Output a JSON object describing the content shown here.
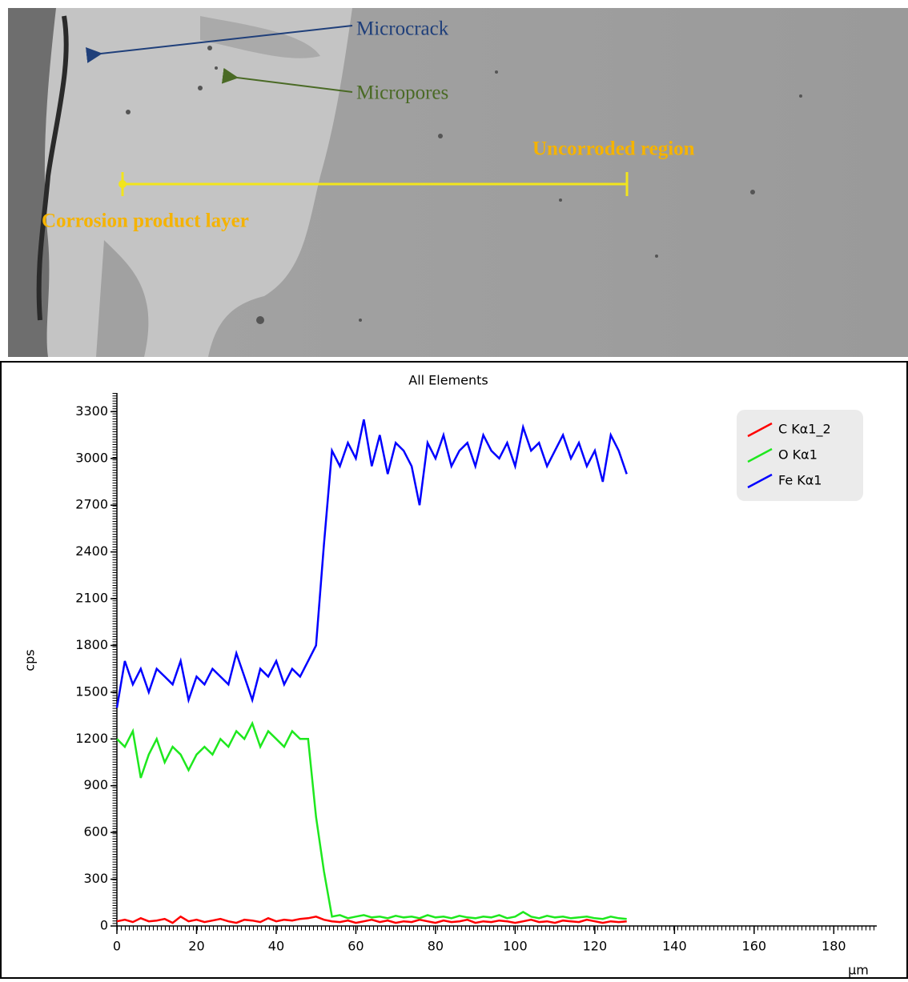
{
  "image": {
    "annotations": [
      "Microcrack",
      "Micropores",
      "Uncorroded region",
      "Corrosion product layer"
    ]
  },
  "chart_data": {
    "type": "line",
    "title": "All Elements",
    "y_label": "cps",
    "x_label": "µm",
    "x": [
      0,
      2,
      4,
      6,
      8,
      10,
      12,
      14,
      16,
      18,
      20,
      22,
      24,
      26,
      28,
      30,
      32,
      34,
      36,
      38,
      40,
      42,
      44,
      46,
      48,
      50,
      52,
      54,
      56,
      58,
      60,
      62,
      64,
      66,
      68,
      70,
      72,
      74,
      76,
      78,
      80,
      82,
      84,
      86,
      88,
      90,
      92,
      94,
      96,
      98,
      100,
      102,
      104,
      106,
      108,
      110,
      112,
      114,
      116,
      118,
      120,
      122,
      124,
      126,
      128
    ],
    "series": [
      {
        "name": "C Kα1_2",
        "color": "#ff0000",
        "values": [
          30,
          40,
          25,
          50,
          30,
          35,
          45,
          20,
          60,
          30,
          40,
          25,
          35,
          45,
          30,
          20,
          40,
          35,
          25,
          50,
          30,
          40,
          35,
          45,
          50,
          60,
          40,
          30,
          25,
          35,
          20,
          30,
          40,
          25,
          35,
          20,
          30,
          25,
          40,
          30,
          20,
          35,
          25,
          30,
          40,
          20,
          30,
          25,
          35,
          30,
          20,
          30,
          40,
          25,
          30,
          20,
          35,
          30,
          25,
          40,
          30,
          20,
          30,
          25,
          30
        ]
      },
      {
        "name": "O Kα1",
        "color": "#1ee81e",
        "values": [
          1200,
          1150,
          1250,
          950,
          1100,
          1200,
          1050,
          1150,
          1100,
          1000,
          1100,
          1150,
          1100,
          1200,
          1150,
          1250,
          1200,
          1300,
          1150,
          1250,
          1200,
          1150,
          1250,
          1200,
          1200,
          700,
          350,
          60,
          70,
          50,
          60,
          70,
          55,
          60,
          50,
          65,
          55,
          60,
          50,
          70,
          55,
          60,
          50,
          65,
          55,
          50,
          60,
          55,
          70,
          50,
          60,
          90,
          60,
          50,
          65,
          55,
          60,
          50,
          55,
          60,
          50,
          45,
          60,
          50,
          45
        ]
      },
      {
        "name": "Fe Kα1",
        "color": "#0000ff",
        "values": [
          1400,
          1700,
          1550,
          1650,
          1500,
          1650,
          1600,
          1550,
          1700,
          1450,
          1600,
          1550,
          1650,
          1600,
          1550,
          1750,
          1600,
          1450,
          1650,
          1600,
          1700,
          1550,
          1650,
          1600,
          1700,
          1800,
          2450,
          3050,
          2950,
          3100,
          3000,
          3250,
          2950,
          3150,
          2900,
          3100,
          3050,
          2950,
          2700,
          3100,
          3000,
          3150,
          2950,
          3050,
          3100,
          2950,
          3150,
          3050,
          3000,
          3100,
          2950,
          3200,
          3050,
          3100,
          2950,
          3050,
          3150,
          3000,
          3100,
          2950,
          3050,
          2850,
          3150,
          3050,
          2900
        ]
      }
    ],
    "xlim": [
      0,
      192
    ],
    "ylim": [
      0,
      3420
    ],
    "xticks": [
      0,
      20,
      40,
      60,
      80,
      100,
      120,
      140,
      160,
      180
    ],
    "yticks": [
      0,
      300,
      600,
      900,
      1200,
      1500,
      1800,
      2100,
      2400,
      2700,
      3000,
      3300
    ],
    "legend": "top-right"
  }
}
